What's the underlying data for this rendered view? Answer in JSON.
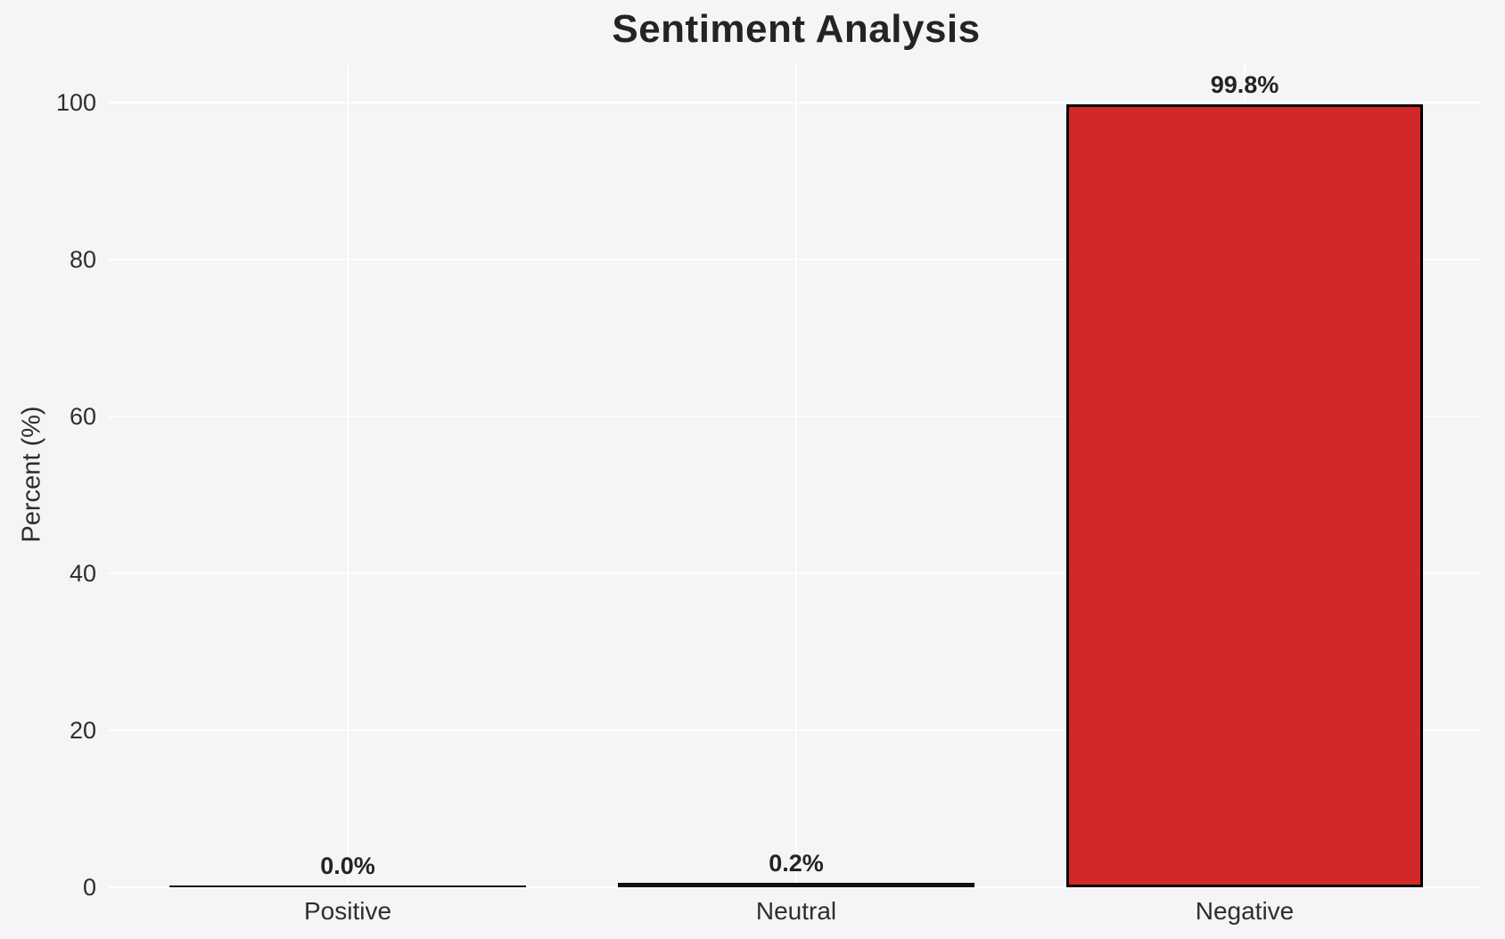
{
  "chart_data": {
    "type": "bar",
    "title": "Sentiment Analysis",
    "xlabel": "",
    "ylabel": "Percent (%)",
    "categories": [
      "Positive",
      "Neutral",
      "Negative"
    ],
    "values": [
      0.0,
      0.2,
      99.8
    ],
    "value_labels": [
      "0.0%",
      "0.2%",
      "99.8%"
    ],
    "yticks": [
      0,
      20,
      40,
      60,
      80,
      100
    ],
    "ylim": [
      0,
      104.8
    ],
    "grid": true,
    "legend_position": "none",
    "bar_colors": [
      null,
      null,
      "#d32829"
    ],
    "bar_edge_color": "#000000",
    "background_color": "#f5f5f7",
    "gridline_color": "#ffffff",
    "text_color": "#2e2e2e"
  }
}
